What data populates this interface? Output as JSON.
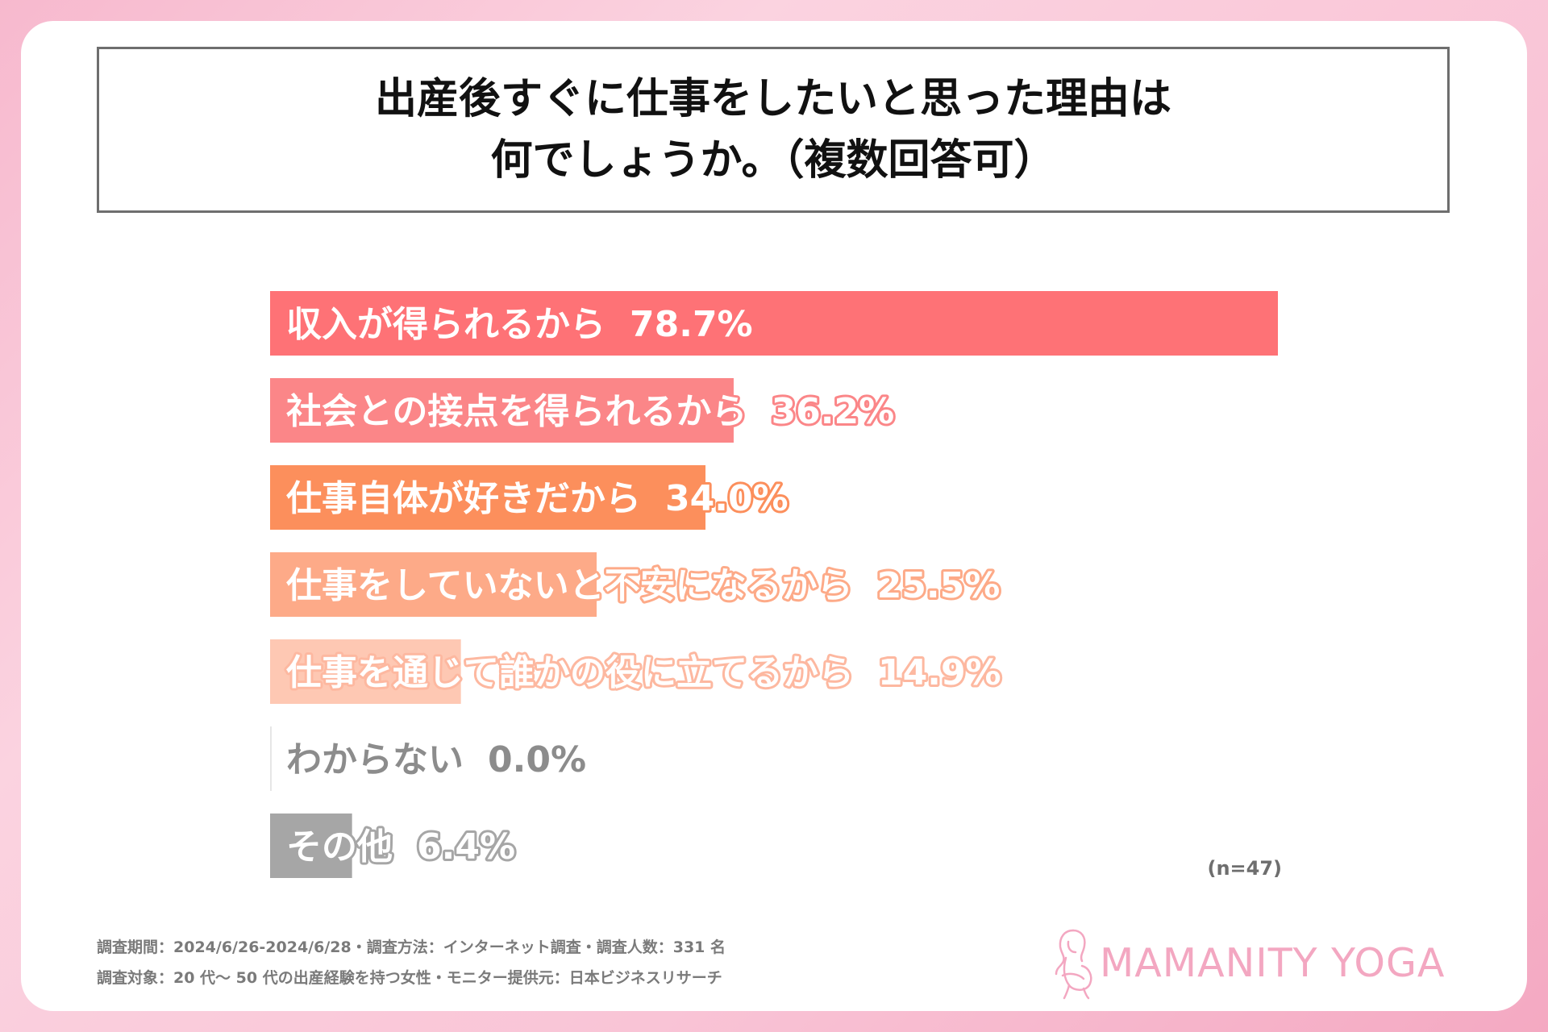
{
  "title": {
    "line1": "出産後すぐに仕事をしたいと思った理由は",
    "line2": "何でしょうか。（複数回答可）"
  },
  "colors": {
    "bars": [
      "#fe7276",
      "#fb8688",
      "#fc8f5c",
      "#fdaa88",
      "#fec8b3",
      "#e6e6e6",
      "#a6a6a6"
    ],
    "labels": [
      "#ffffff",
      "#ffffff",
      "#ffffff",
      "#ffffff",
      "#ffffff",
      "#8c8c8c",
      "#ffffff"
    ],
    "outlines": [
      "#fe7276",
      "#fb8688",
      "#fc8f5c",
      "#fdaa88",
      "#fdb8a0",
      "#ffffff",
      "#a6a6a6"
    ],
    "brand": "#f3a7c1"
  },
  "chart_data": {
    "type": "bar",
    "orientation": "horizontal",
    "categories": [
      "収入が得られるから",
      "社会との接点を得られるから",
      "仕事自体が好きだから",
      "仕事をしていないと不安になるから",
      "仕事を通じて誰かの役に立てるから",
      "わからない",
      "その他"
    ],
    "values": [
      78.7,
      36.2,
      34.0,
      25.5,
      14.9,
      0.0,
      6.4
    ],
    "value_labels": [
      "78.7%",
      "36.2%",
      "34.0%",
      "25.5%",
      "14.9%",
      "0.0%",
      "6.4%"
    ],
    "xlim": [
      0,
      78.7
    ],
    "grid": false,
    "legend": "none"
  },
  "sample_note": "(n=47)",
  "footnotes": [
    "調査期間：2024/6/26-2024/6/28・調査方法：インターネット調査・調査人数：331 名",
    "調査対象：20 代～ 50 代の出産経験を持つ女性・モニター提供元：日本ビジネスリサーチ"
  ],
  "brand": {
    "name": "MAMANITY YOGA",
    "icon": "pregnant-woman-icon"
  }
}
